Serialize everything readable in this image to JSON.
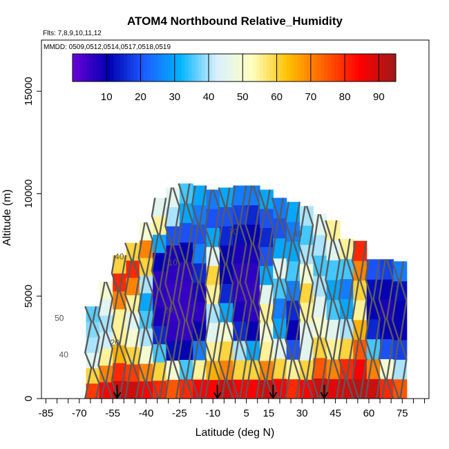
{
  "chart_data": {
    "type": "heatmap",
    "title": "ATOM4 Northbound Relative_Humidity",
    "subtitle_flights": "Flts: 7,8,9,10,11,12",
    "subtitle_dates": "MMDD: 0509,0512,0514,0517,0518,0519",
    "xlabel": "Latitude (deg N)",
    "ylabel": "Altitude (m)",
    "xlim": [
      -87,
      87
    ],
    "ylim": [
      0,
      17500
    ],
    "x_ticks": [
      "-85",
      "-70",
      "-55",
      "-40",
      "-25",
      "-10",
      "5",
      "15",
      "30",
      "45",
      "60",
      "75"
    ],
    "x_tick_values": [
      -85,
      -70,
      -55,
      -40,
      -25,
      -10,
      5,
      15,
      30,
      45,
      60,
      75
    ],
    "y_ticks": [
      "0",
      "5000",
      "10000",
      "15000"
    ],
    "y_tick_values": [
      0,
      5000,
      10000,
      15000
    ],
    "colorbar": {
      "min": 0,
      "max": 95,
      "ticks": [
        "10",
        "20",
        "30",
        "40",
        "50",
        "60",
        "70",
        "80",
        "90"
      ],
      "tick_values": [
        10,
        20,
        30,
        40,
        50,
        60,
        70,
        80,
        90
      ],
      "colors": [
        "#6a00d8",
        "#0000b0",
        "#1e5cff",
        "#00b4ff",
        "#d8f0ff",
        "#ffffc0",
        "#ffc000",
        "#ff6000",
        "#ff0000",
        "#9e1a1a"
      ]
    },
    "contour_labels": [
      "40",
      "50",
      "20",
      "70",
      "10",
      "40",
      "20",
      "40"
    ],
    "profile_markers_lat": [
      -53,
      -8,
      17,
      40
    ],
    "profiles": [
      {
        "lat": -64,
        "top": 4500,
        "rh": [
          78,
          60,
          45,
          40,
          38,
          36
        ]
      },
      {
        "lat": -58,
        "top": 5700,
        "rh": [
          85,
          70,
          55,
          42,
          40,
          45,
          50
        ]
      },
      {
        "lat": -52,
        "top": 7000,
        "rh": [
          90,
          80,
          65,
          55,
          55,
          70,
          80,
          60
        ]
      },
      {
        "lat": -46,
        "top": 7600,
        "rh": [
          90,
          78,
          60,
          50,
          45,
          55,
          70,
          80,
          60
        ]
      },
      {
        "lat": -40,
        "top": 8600,
        "rh": [
          85,
          70,
          50,
          40,
          35,
          30,
          40,
          60,
          70,
          50
        ]
      },
      {
        "lat": -34,
        "top": 9800,
        "rh": [
          80,
          60,
          35,
          15,
          8,
          6,
          6,
          10,
          30,
          55,
          45
        ]
      },
      {
        "lat": -28,
        "top": 10300,
        "rh": [
          75,
          50,
          12,
          6,
          5,
          5,
          6,
          8,
          20,
          40,
          45
        ]
      },
      {
        "lat": -22,
        "top": 10500,
        "rh": [
          80,
          35,
          10,
          5,
          5,
          5,
          6,
          10,
          20,
          30,
          35
        ]
      },
      {
        "lat": -16,
        "top": 10400,
        "rh": [
          85,
          55,
          25,
          10,
          6,
          8,
          15,
          25,
          20,
          25,
          30
        ]
      },
      {
        "lat": -10,
        "top": 10200,
        "rh": [
          85,
          65,
          55,
          45,
          40,
          55,
          60,
          45,
          30,
          20,
          25
        ]
      },
      {
        "lat": -4,
        "top": 10300,
        "rh": [
          90,
          70,
          60,
          50,
          30,
          15,
          10,
          10,
          15,
          20,
          30
        ]
      },
      {
        "lat": 2,
        "top": 10400,
        "rh": [
          85,
          60,
          40,
          15,
          8,
          6,
          6,
          8,
          12,
          18,
          25
        ]
      },
      {
        "lat": 8,
        "top": 10400,
        "rh": [
          85,
          60,
          30,
          10,
          6,
          5,
          6,
          8,
          10,
          15,
          25
        ]
      },
      {
        "lat": 14,
        "top": 10200,
        "rh": [
          90,
          70,
          55,
          50,
          55,
          45,
          30,
          20,
          15,
          20,
          30
        ]
      },
      {
        "lat": 20,
        "top": 9800,
        "rh": [
          85,
          60,
          45,
          30,
          25,
          35,
          45,
          30,
          20,
          25
        ]
      },
      {
        "lat": 26,
        "top": 9600,
        "rh": [
          80,
          55,
          20,
          10,
          15,
          25,
          35,
          30,
          25,
          30
        ]
      },
      {
        "lat": 32,
        "top": 9400,
        "rh": [
          85,
          60,
          45,
          45,
          55,
          60,
          50,
          40,
          35,
          40
        ]
      },
      {
        "lat": 38,
        "top": 9000,
        "rh": [
          90,
          75,
          60,
          50,
          45,
          40,
          35,
          40,
          45
        ]
      },
      {
        "lat": 44,
        "top": 8700,
        "rh": [
          88,
          70,
          55,
          45,
          35,
          30,
          35,
          45,
          55
        ]
      },
      {
        "lat": 50,
        "top": 7800,
        "rh": [
          90,
          80,
          60,
          40,
          30,
          25,
          35,
          55
        ]
      },
      {
        "lat": 56,
        "top": 7700,
        "rh": [
          92,
          85,
          75,
          65,
          55,
          60,
          70,
          80
        ]
      },
      {
        "lat": 62,
        "top": 6800,
        "rh": [
          90,
          70,
          35,
          15,
          10,
          12,
          20
        ]
      },
      {
        "lat": 68,
        "top": 6800,
        "rh": [
          80,
          50,
          20,
          10,
          8,
          10,
          18
        ]
      },
      {
        "lat": 74,
        "top": 6700,
        "rh": [
          75,
          40,
          18,
          10,
          10,
          12,
          25
        ]
      }
    ]
  }
}
